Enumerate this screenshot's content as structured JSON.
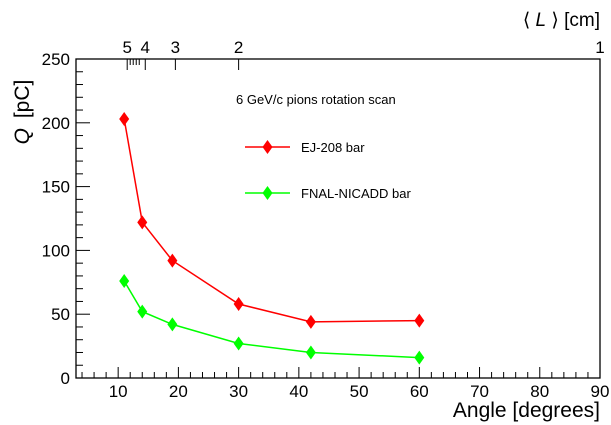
{
  "chart_data": {
    "type": "line",
    "annotation": "6 GeV/c pions rotation scan",
    "xlabel": "Angle [degrees]",
    "ylabel_var": "Q",
    "ylabel_unit": "[pC]",
    "top_axis_label_var": "L",
    "top_axis_label_unit": "[cm]",
    "xlim": [
      3,
      90
    ],
    "ylim": [
      0,
      250
    ],
    "x_major_ticks": [
      10,
      20,
      30,
      40,
      50,
      60,
      70,
      80,
      90
    ],
    "x_minor_step": 2,
    "y_major_ticks": [
      0,
      50,
      100,
      150,
      200,
      250
    ],
    "y_minor_step": 10,
    "top_axis": {
      "scale": "reciprocal",
      "major_ticks": [
        {
          "value": 1,
          "label": "1",
          "x_angle": 90
        },
        {
          "value": 2,
          "label": "2",
          "x_angle": 30
        },
        {
          "value": 3,
          "label": "3",
          "x_angle": 19.5
        },
        {
          "value": 4,
          "label": "4",
          "x_angle": 14.5
        },
        {
          "value": 5,
          "label": "5",
          "x_angle": 11.5
        }
      ],
      "minor_tick_angles": [
        12.0,
        12.5,
        13.0,
        13.5
      ]
    },
    "grid": false,
    "legend_position": "upper-middle",
    "series": [
      {
        "name": "EJ-208 bar",
        "color": "#ff0000",
        "marker": "diamond",
        "x": [
          11,
          14,
          19,
          30,
          42,
          60
        ],
        "y": [
          203,
          122,
          92,
          58,
          44,
          45
        ]
      },
      {
        "name": "FNAL-NICADD bar",
        "color": "#00ff00",
        "marker": "diamond",
        "x": [
          11,
          14,
          19,
          30,
          42,
          60
        ],
        "y": [
          76,
          52,
          42,
          27,
          20,
          16
        ]
      }
    ]
  }
}
